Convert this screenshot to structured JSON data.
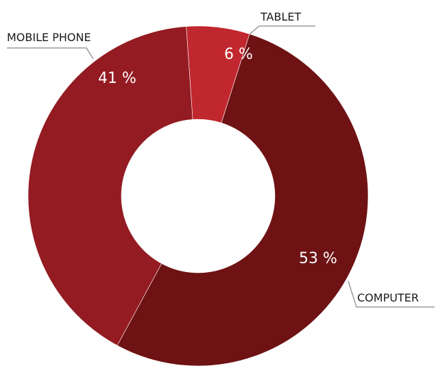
{
  "chart_data": {
    "type": "pie",
    "title": "",
    "donut": true,
    "categories": [
      "MOBILE PHONE",
      "TABLET",
      "COMPUTER"
    ],
    "values": [
      41,
      6,
      53
    ],
    "value_labels": [
      "41 %",
      "6 %",
      "53 %"
    ],
    "colors": [
      "#941b22",
      "#c1272f",
      "#6e1214"
    ],
    "legend": "none"
  }
}
